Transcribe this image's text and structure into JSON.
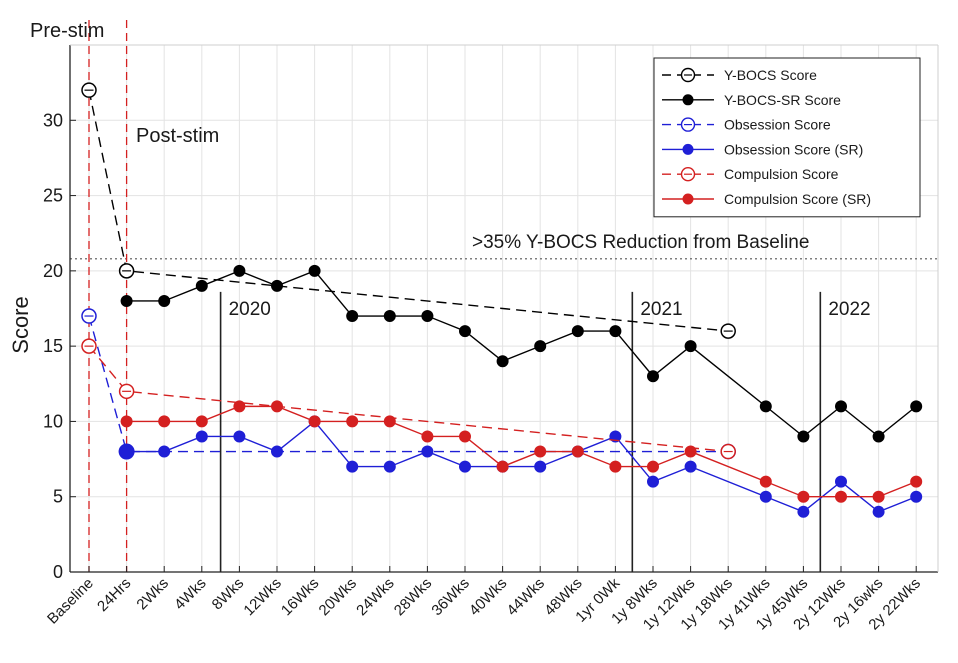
{
  "chart_data": {
    "type": "line",
    "ylabel": "Score",
    "ylim": [
      0,
      35
    ],
    "yticks": [
      0,
      5,
      10,
      15,
      20,
      25,
      30
    ],
    "grid": true,
    "legend_position": "top-right",
    "categories": [
      "Baseline",
      "24Hrs",
      "2Wks",
      "4Wks",
      "8Wks",
      "12Wks",
      "16Wks",
      "20Wks",
      "24Wks",
      "28Wks",
      "36Wks",
      "40Wks",
      "44Wks",
      "48Wks",
      "1yr 0Wk",
      "1y 8Wks",
      "1y 12Wks",
      "1y 18Wks",
      "1y 41Wks",
      "1y 45Wks",
      "2y 12Wks",
      "2y 16wks",
      "2y 22Wks"
    ],
    "series": [
      {
        "name": "Y-BOCS Score",
        "color": "#000000",
        "dashed": true,
        "marker": "open-circle",
        "points": [
          [
            0,
            32
          ],
          [
            1,
            20
          ],
          [
            17,
            16
          ]
        ]
      },
      {
        "name": "Y-BOCS-SR Score",
        "color": "#000000",
        "dashed": false,
        "marker": "filled-circle",
        "points": [
          [
            1,
            18
          ],
          [
            2,
            18
          ],
          [
            3,
            19
          ],
          [
            4,
            20
          ],
          [
            5,
            19
          ],
          [
            6,
            20
          ],
          [
            7,
            17
          ],
          [
            8,
            17
          ],
          [
            9,
            17
          ],
          [
            10,
            16
          ],
          [
            11,
            14
          ],
          [
            12,
            15
          ],
          [
            13,
            16
          ],
          [
            14,
            16
          ],
          [
            15,
            13
          ],
          [
            16,
            15
          ],
          [
            18,
            11
          ],
          [
            19,
            9
          ],
          [
            20,
            11
          ],
          [
            21,
            9
          ],
          [
            22,
            11
          ]
        ]
      },
      {
        "name": "Obsession Score",
        "color": "#1f1fd6",
        "dashed": true,
        "marker": "open-circle",
        "points": [
          [
            0,
            17
          ],
          [
            1,
            8
          ],
          [
            17,
            8
          ]
        ]
      },
      {
        "name": "Obsession Score (SR)",
        "color": "#1f1fd6",
        "dashed": false,
        "marker": "filled-circle",
        "points": [
          [
            1,
            8
          ],
          [
            2,
            8
          ],
          [
            3,
            9
          ],
          [
            4,
            9
          ],
          [
            5,
            8
          ],
          [
            6,
            10
          ],
          [
            7,
            7
          ],
          [
            8,
            7
          ],
          [
            9,
            8
          ],
          [
            10,
            7
          ],
          [
            11,
            7
          ],
          [
            12,
            7
          ],
          [
            13,
            8
          ],
          [
            14,
            9
          ],
          [
            15,
            6
          ],
          [
            16,
            7
          ],
          [
            18,
            5
          ],
          [
            19,
            4
          ],
          [
            20,
            6
          ],
          [
            21,
            4
          ],
          [
            22,
            5
          ]
        ]
      },
      {
        "name": "Compulsion Score",
        "color": "#d42020",
        "dashed": true,
        "marker": "open-circle",
        "points": [
          [
            0,
            15
          ],
          [
            1,
            12
          ],
          [
            17,
            8
          ]
        ]
      },
      {
        "name": "Compulsion Score (SR)",
        "color": "#d42020",
        "dashed": false,
        "marker": "filled-circle",
        "points": [
          [
            1,
            10
          ],
          [
            2,
            10
          ],
          [
            3,
            10
          ],
          [
            4,
            11
          ],
          [
            5,
            11
          ],
          [
            6,
            10
          ],
          [
            7,
            10
          ],
          [
            8,
            10
          ],
          [
            9,
            9
          ],
          [
            10,
            9
          ],
          [
            11,
            7
          ],
          [
            12,
            8
          ],
          [
            13,
            8
          ],
          [
            14,
            7
          ],
          [
            15,
            7
          ],
          [
            16,
            8
          ],
          [
            18,
            6
          ],
          [
            19,
            5
          ],
          [
            20,
            5
          ],
          [
            21,
            5
          ],
          [
            22,
            6
          ]
        ]
      }
    ],
    "threshold": {
      "value": 20.8,
      "label": ">35% Y-BOCS Reduction from Baseline"
    },
    "stim_markers": [
      {
        "x": 0,
        "label": "Pre-stim"
      },
      {
        "x": 1,
        "label": "Post-stim"
      }
    ],
    "year_markers": [
      {
        "x": 3.5,
        "label": "2020"
      },
      {
        "x": 14.45,
        "label": "2021"
      },
      {
        "x": 19.45,
        "label": "2022"
      }
    ]
  }
}
